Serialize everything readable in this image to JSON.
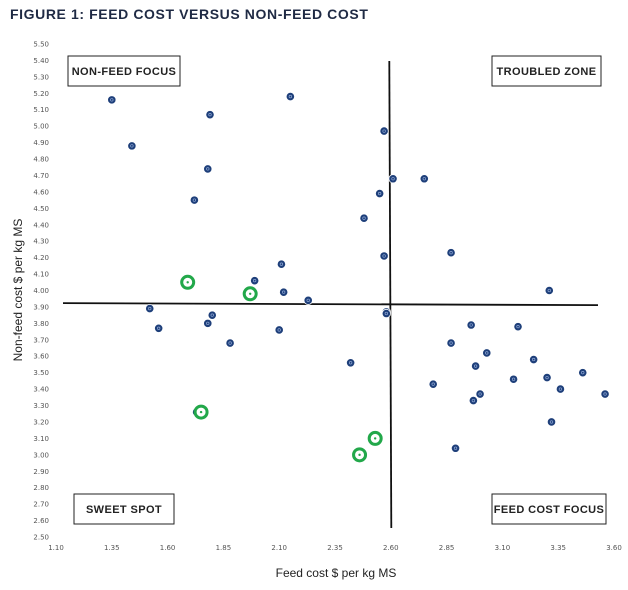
{
  "title": "FIGURE 1: FEED COST VERSUS NON-FEED COST",
  "chart_data": {
    "type": "scatter",
    "xlabel": "Feed cost $ per kg MS",
    "ylabel": "Non-feed cost $ per kg MS",
    "xlim": [
      1.1,
      3.6
    ],
    "ylim": [
      2.5,
      5.5
    ],
    "x_ticks": [
      "1.10",
      "1.35",
      "1.60",
      "1.85",
      "2.10",
      "2.35",
      "2.60",
      "2.85",
      "3.10",
      "3.35",
      "3.60"
    ],
    "y_ticks": [
      "2.50",
      "2.60",
      "2.70",
      "2.80",
      "2.90",
      "3.00",
      "3.10",
      "3.20",
      "3.30",
      "3.40",
      "3.50",
      "3.60",
      "3.70",
      "3.80",
      "3.90",
      "4.00",
      "4.10",
      "4.20",
      "4.30",
      "4.40",
      "4.50",
      "4.60",
      "4.70",
      "4.80",
      "4.90",
      "5.00",
      "5.10",
      "5.20",
      "5.30",
      "5.40",
      "5.50"
    ],
    "grid": false,
    "reference_lines": {
      "x": 2.6,
      "y": 3.92
    },
    "quadrant_labels": [
      {
        "text": "NON-FEED FOCUS",
        "position": "top-left"
      },
      {
        "text": "TROUBLED ZONE",
        "position": "top-right"
      },
      {
        "text": "SWEET SPOT",
        "position": "bottom-left"
      },
      {
        "text": "FEED COST FOCUS",
        "position": "bottom-right"
      }
    ],
    "series": [
      {
        "color": "#1e3f7a",
        "points": [
          [
            1.35,
            5.16
          ],
          [
            1.79,
            5.07
          ],
          [
            2.15,
            5.18
          ],
          [
            1.44,
            4.88
          ],
          [
            1.78,
            4.74
          ],
          [
            1.72,
            4.55
          ],
          [
            2.57,
            4.97
          ],
          [
            2.61,
            4.68
          ],
          [
            2.75,
            4.68
          ],
          [
            2.55,
            4.59
          ],
          [
            2.48,
            4.44
          ],
          [
            2.57,
            4.21
          ],
          [
            2.87,
            4.23
          ],
          [
            2.11,
            4.16
          ],
          [
            1.99,
            4.06
          ],
          [
            2.12,
            3.99
          ],
          [
            2.23,
            3.94
          ],
          [
            3.31,
            4.0
          ],
          [
            1.52,
            3.89
          ],
          [
            1.56,
            3.77
          ],
          [
            1.8,
            3.85
          ],
          [
            1.78,
            3.8
          ],
          [
            1.88,
            3.68
          ],
          [
            2.1,
            3.76
          ],
          [
            2.58,
            3.87
          ],
          [
            2.58,
            3.86
          ],
          [
            2.42,
            3.56
          ],
          [
            2.87,
            3.68
          ],
          [
            2.96,
            3.79
          ],
          [
            2.98,
            3.54
          ],
          [
            3.03,
            3.62
          ],
          [
            3.17,
            3.78
          ],
          [
            3.24,
            3.58
          ],
          [
            2.79,
            3.43
          ],
          [
            3.15,
            3.46
          ],
          [
            3.3,
            3.47
          ],
          [
            3.46,
            3.5
          ],
          [
            3.36,
            3.4
          ],
          [
            3.56,
            3.37
          ],
          [
            3.0,
            3.37
          ],
          [
            2.97,
            3.33
          ],
          [
            1.73,
            3.26
          ],
          [
            3.32,
            3.2
          ],
          [
            2.89,
            3.04
          ]
        ]
      },
      {
        "color": "#22a84a",
        "points": [
          [
            1.69,
            4.05
          ],
          [
            1.97,
            3.98
          ],
          [
            1.75,
            3.26
          ],
          [
            2.53,
            3.1
          ],
          [
            2.46,
            3.0
          ]
        ]
      }
    ]
  }
}
